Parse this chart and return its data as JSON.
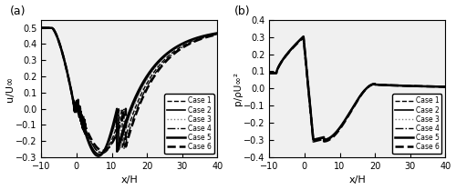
{
  "xlim": [
    -10,
    40
  ],
  "ylim_a": [
    -0.3,
    0.55
  ],
  "ylim_b": [
    -0.4,
    0.4
  ],
  "yticks_a": [
    -0.3,
    -0.2,
    -0.1,
    0.0,
    0.1,
    0.2,
    0.3,
    0.4,
    0.5
  ],
  "yticks_b": [
    -0.4,
    -0.3,
    -0.2,
    -0.1,
    0.0,
    0.1,
    0.2,
    0.3,
    0.4
  ],
  "xticks": [
    -10,
    0,
    10,
    20,
    30,
    40
  ],
  "xlabel": "x/H",
  "ylabel_a": "u/U∞",
  "ylabel_b": "p/ρU∞²",
  "label_a": "(a)",
  "label_b": "(b)",
  "legend_labels": [
    "Case 1",
    "Case 2",
    "Case 3",
    "Case 4",
    "Case 5",
    "Case 6"
  ],
  "line_styles": [
    "--",
    "-",
    ":",
    "-.",
    "-",
    "--"
  ],
  "line_widths": [
    1.0,
    1.2,
    1.0,
    1.0,
    1.8,
    1.8
  ],
  "line_colors": [
    "black",
    "black",
    "gray",
    "black",
    "black",
    "black"
  ],
  "reattach_vals": [
    13.0,
    12.0,
    12.5,
    13.5,
    11.5,
    14.0
  ],
  "u_min_vals": [
    -0.245,
    -0.255,
    -0.24,
    -0.25,
    -0.265,
    -0.235
  ],
  "p_min_vals": [
    -0.302,
    -0.3,
    -0.305,
    -0.302,
    -0.298,
    -0.308
  ],
  "p_peak_vals": [
    0.3,
    0.302,
    0.299,
    0.301,
    0.303,
    0.298
  ],
  "background_color": "#f0f0f0",
  "figsize": [
    5.0,
    2.09
  ],
  "dpi": 100
}
